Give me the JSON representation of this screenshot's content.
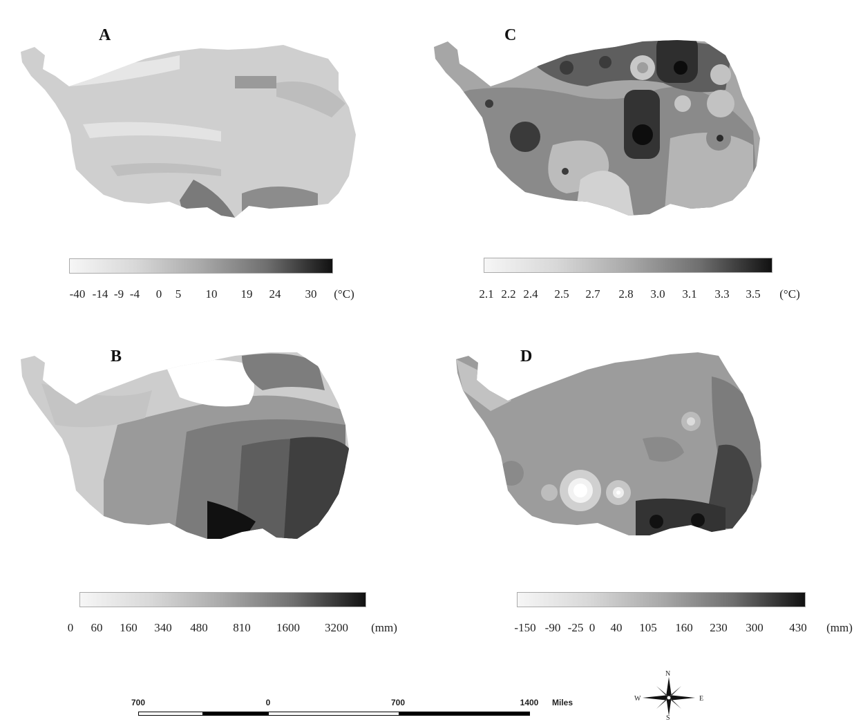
{
  "panels": {
    "A": {
      "letter": "A",
      "legend_labels": [
        "-40",
        "-14",
        "-9",
        "-4",
        "0",
        "5",
        "10",
        "19",
        "24",
        "30",
        "(°C)"
      ],
      "gradient": [
        "#f6f6f6",
        "#d8d8d8",
        "#a9a9a9",
        "#6f6f6f",
        "#111111"
      ]
    },
    "B": {
      "letter": "B",
      "legend_labels": [
        "0",
        "60",
        "160",
        "340",
        "480",
        "810",
        "1600",
        "3200",
        "(mm)"
      ],
      "gradient": [
        "#f6f6f6",
        "#d8d8d8",
        "#a9a9a9",
        "#6f6f6f",
        "#111111"
      ]
    },
    "C": {
      "letter": "C",
      "legend_labels": [
        "2.1",
        "2.2",
        "2.4",
        "2.5",
        "2.7",
        "2.8",
        "3.0",
        "3.1",
        "3.3",
        "3.5",
        "(°C)"
      ],
      "gradient": [
        "#f6f6f6",
        "#d8d8d8",
        "#a9a9a9",
        "#6f6f6f",
        "#111111"
      ]
    },
    "D": {
      "letter": "D",
      "legend_labels": [
        "-150",
        "-90",
        "-25",
        "0",
        "40",
        "105",
        "160",
        "230",
        "300",
        "430",
        "(mm)"
      ],
      "gradient": [
        "#f6f6f6",
        "#d8d8d8",
        "#a9a9a9",
        "#6f6f6f",
        "#111111"
      ]
    }
  },
  "scalebar": {
    "labels": [
      "700",
      "0",
      "700",
      "1400"
    ],
    "unit": "Miles"
  },
  "compass": {
    "n": "N",
    "s": "S",
    "e": "E",
    "w": "W",
    "icon": "compass-rose-icon"
  }
}
